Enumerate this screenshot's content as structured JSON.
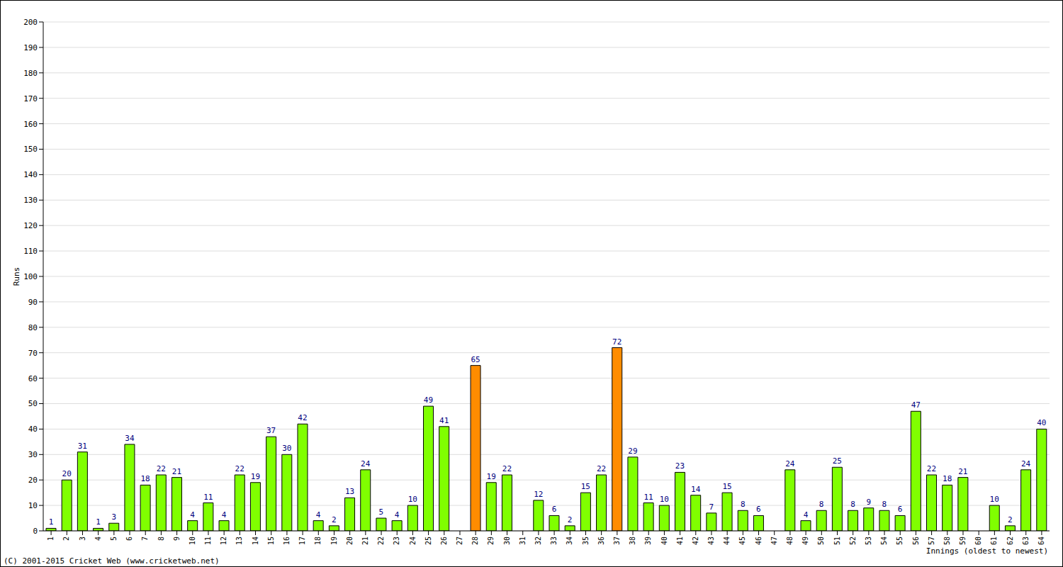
{
  "chart_data": {
    "type": "bar",
    "ylabel": "Runs",
    "xlabel": "Innings (oldest to newest)",
    "annotations": [
      "(C) 2001-2015 Cricket Web (www.cricketweb.net)"
    ],
    "categories": [
      "1",
      "2",
      "3",
      "4",
      "5",
      "6",
      "7",
      "8",
      "9",
      "10",
      "11",
      "12",
      "13",
      "14",
      "15",
      "16",
      "17",
      "18",
      "19",
      "20",
      "21",
      "22",
      "23",
      "24",
      "25",
      "26",
      "27",
      "28",
      "29",
      "30",
      "31",
      "32",
      "33",
      "34",
      "35",
      "36",
      "37",
      "38",
      "39",
      "40",
      "41",
      "42",
      "43",
      "44",
      "45",
      "46",
      "47",
      "48",
      "49",
      "50",
      "51",
      "52",
      "53",
      "54",
      "55",
      "56",
      "57",
      "58",
      "59",
      "60",
      "61",
      "62",
      "63",
      "64"
    ],
    "values": [
      1,
      20,
      31,
      1,
      3,
      34,
      18,
      22,
      21,
      4,
      11,
      4,
      22,
      19,
      37,
      30,
      42,
      4,
      2,
      13,
      24,
      5,
      4,
      10,
      49,
      41,
      0,
      65,
      19,
      22,
      0,
      12,
      6,
      2,
      15,
      22,
      72,
      29,
      11,
      10,
      23,
      14,
      7,
      15,
      8,
      6,
      0,
      24,
      4,
      8,
      25,
      8,
      9,
      8,
      6,
      47,
      22,
      18,
      21,
      0,
      10,
      2,
      24,
      40
    ],
    "colors": [
      "#80ff00",
      "#80ff00",
      "#80ff00",
      "#80ff00",
      "#80ff00",
      "#80ff00",
      "#80ff00",
      "#80ff00",
      "#80ff00",
      "#80ff00",
      "#80ff00",
      "#80ff00",
      "#80ff00",
      "#80ff00",
      "#80ff00",
      "#80ff00",
      "#80ff00",
      "#80ff00",
      "#80ff00",
      "#80ff00",
      "#80ff00",
      "#80ff00",
      "#80ff00",
      "#80ff00",
      "#80ff00",
      "#80ff00",
      "#80ff00",
      "#ff8c00",
      "#80ff00",
      "#80ff00",
      "#80ff00",
      "#80ff00",
      "#80ff00",
      "#80ff00",
      "#80ff00",
      "#80ff00",
      "#ff8c00",
      "#80ff00",
      "#80ff00",
      "#80ff00",
      "#80ff00",
      "#80ff00",
      "#80ff00",
      "#80ff00",
      "#80ff00",
      "#80ff00",
      "#80ff00",
      "#80ff00",
      "#80ff00",
      "#80ff00",
      "#80ff00",
      "#80ff00",
      "#80ff00",
      "#80ff00",
      "#80ff00",
      "#80ff00",
      "#80ff00",
      "#80ff00",
      "#80ff00",
      "#80ff00",
      "#80ff00",
      "#80ff00",
      "#80ff00",
      "#80ff00"
    ],
    "ylim": [
      0,
      200
    ],
    "yticks": [
      0,
      10,
      20,
      30,
      40,
      50,
      60,
      70,
      80,
      90,
      100,
      110,
      120,
      130,
      140,
      150,
      160,
      170,
      180,
      190,
      200
    ],
    "grid": true,
    "data_labels": true
  }
}
